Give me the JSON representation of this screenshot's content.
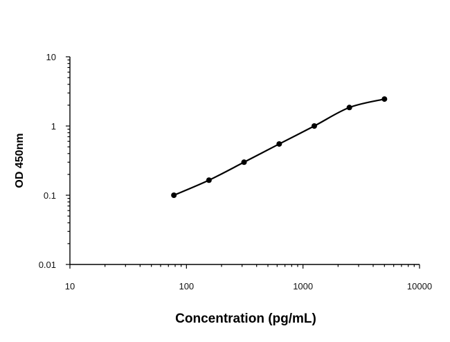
{
  "chart_data": {
    "type": "line",
    "title": "",
    "xlabel": "Concentration (pg/mL)",
    "ylabel": "OD 450nm",
    "x_scale": "log",
    "y_scale": "log",
    "xlim": [
      10,
      10000
    ],
    "ylim": [
      0.01,
      10
    ],
    "x_tick_labels": [
      "10",
      "100",
      "1000",
      "10000"
    ],
    "y_tick_labels": [
      "0.01",
      "0.1",
      "1",
      "10"
    ],
    "grid": false,
    "legend": "none",
    "series": [
      {
        "x": [
          78,
          156,
          312,
          625,
          1250,
          2500,
          5000
        ],
        "y": [
          0.1,
          0.165,
          0.3,
          0.55,
          1.0,
          1.85,
          2.45
        ]
      }
    ]
  }
}
